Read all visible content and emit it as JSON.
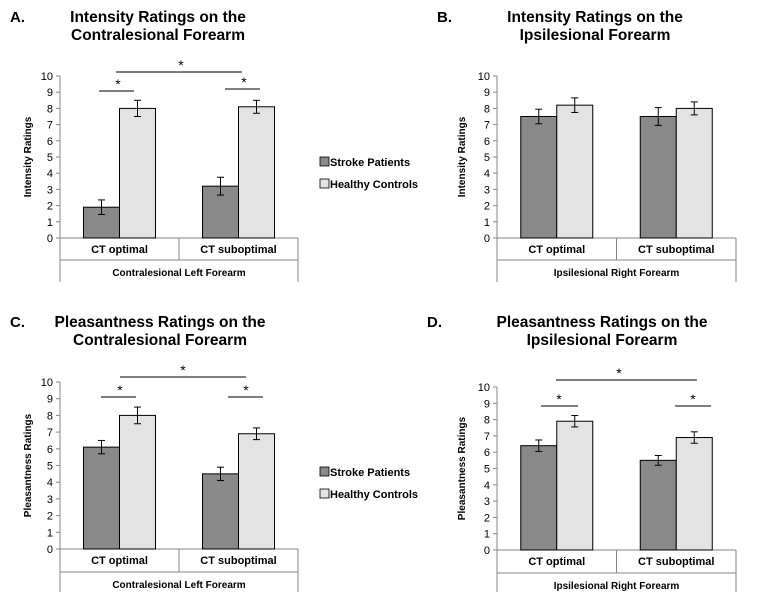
{
  "colors": {
    "stroke": "#898989",
    "healthy": "#e3e3e3",
    "axis": "#868686",
    "border": "#000000"
  },
  "legend_1": {
    "stroke": "Stroke Patients",
    "healthy": "Healthy Controls"
  },
  "legend_2": {
    "stroke": "Stroke Patients",
    "healthy": "Healthy Controls"
  },
  "chart_data": [
    {
      "panel": "A.",
      "type": "bar",
      "title": [
        "Intensity Ratings on the",
        "Contralesional Forearm"
      ],
      "ylabel": "Intensity Ratings",
      "ylim": [
        0,
        10
      ],
      "categories": [
        "CT optimal",
        "CT suboptimal"
      ],
      "group_label": "Contralesional Left Forearm",
      "series": [
        {
          "name": "Stroke Patients",
          "values": [
            1.9,
            3.2
          ],
          "errors": [
            0.45,
            0.55
          ]
        },
        {
          "name": "Healthy Controls",
          "values": [
            8.0,
            8.1
          ],
          "errors": [
            0.5,
            0.4
          ]
        }
      ],
      "significance": [
        "*",
        "*",
        "*"
      ]
    },
    {
      "panel": "B.",
      "type": "bar",
      "title": [
        "Intensity Ratings on the",
        "Ipsilesional Forearm"
      ],
      "ylabel": "Intensity Ratings",
      "ylim": [
        0,
        10
      ],
      "categories": [
        "CT optimal",
        "CT suboptimal"
      ],
      "group_label": "Ipsilesional Right Forearm",
      "series": [
        {
          "name": "Stroke Patients",
          "values": [
            7.5,
            7.5
          ],
          "errors": [
            0.45,
            0.55
          ]
        },
        {
          "name": "Healthy Controls",
          "values": [
            8.2,
            8.0
          ],
          "errors": [
            0.45,
            0.4
          ]
        }
      ],
      "significance": []
    },
    {
      "panel": "C.",
      "type": "bar",
      "title": [
        "Pleasantness Ratings on the",
        "Contralesional Forearm"
      ],
      "ylabel": "Pleasantness Ratings",
      "ylim": [
        0,
        10
      ],
      "categories": [
        "CT optimal",
        "CT suboptimal"
      ],
      "group_label": "Contralesional Left Forearm",
      "series": [
        {
          "name": "Stroke Patients",
          "values": [
            6.1,
            4.5
          ],
          "errors": [
            0.4,
            0.4
          ]
        },
        {
          "name": "Healthy Controls",
          "values": [
            8.0,
            6.9
          ],
          "errors": [
            0.5,
            0.35
          ]
        }
      ],
      "significance": [
        "*",
        "*",
        "*"
      ]
    },
    {
      "panel": "D.",
      "type": "bar",
      "title": [
        "Pleasantness Ratings on the",
        "Ipsilesional Forearm"
      ],
      "ylabel": "Pleasantness Ratings",
      "ylim": [
        0,
        10
      ],
      "categories": [
        "CT optimal",
        "CT suboptimal"
      ],
      "group_label": "Ipsilesional Right Forearm",
      "series": [
        {
          "name": "Stroke Patients",
          "values": [
            6.4,
            5.5
          ],
          "errors": [
            0.35,
            0.3
          ]
        },
        {
          "name": "Healthy Controls",
          "values": [
            7.9,
            6.9
          ],
          "errors": [
            0.35,
            0.35
          ]
        }
      ],
      "significance": [
        "*",
        "*",
        "*"
      ]
    }
  ]
}
